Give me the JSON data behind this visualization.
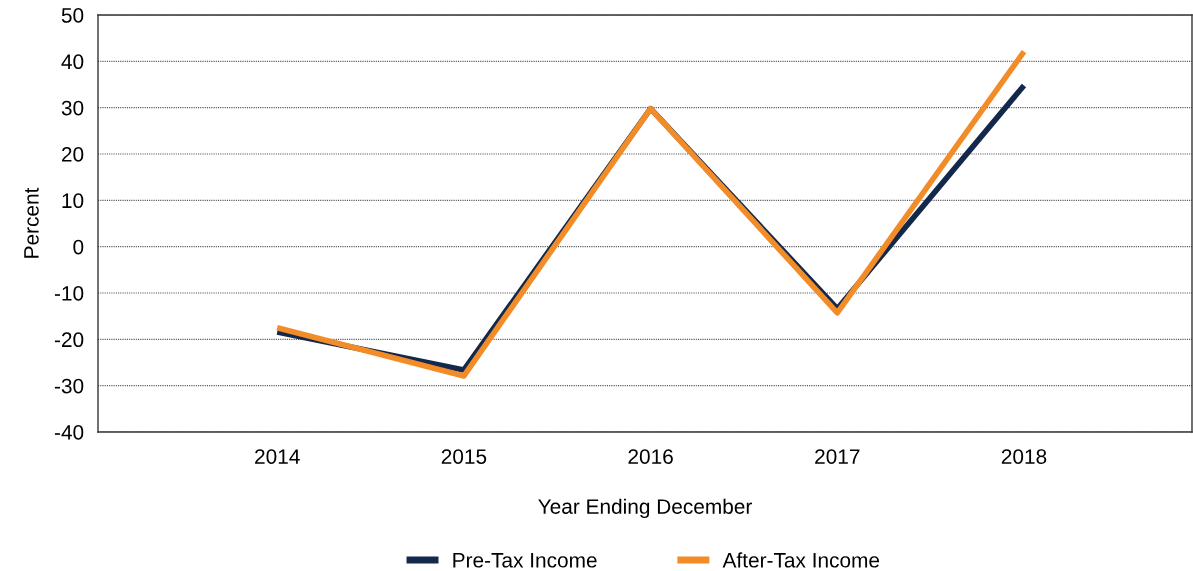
{
  "chart_data": {
    "type": "line",
    "xlabel": "Year Ending December",
    "ylabel": "Percent",
    "categories": [
      "2014",
      "2015",
      "2016",
      "2017",
      "2018"
    ],
    "series": [
      {
        "name": "Pre-Tax Income",
        "color": "#13294b",
        "values": [
          -18.4,
          -26.6,
          29.8,
          -13.4,
          34.8
        ]
      },
      {
        "name": "After-Tax Income",
        "color": "#f28c28",
        "values": [
          -17.5,
          -27.9,
          29.8,
          -14.3,
          42.1
        ]
      }
    ],
    "ylim": [
      -40,
      50
    ],
    "yticks": [
      -40,
      -30,
      -20,
      -10,
      0,
      10,
      20,
      30,
      40,
      50
    ],
    "grid": "y",
    "legend": "bottom",
    "marker": "none",
    "line_style": "solid"
  }
}
